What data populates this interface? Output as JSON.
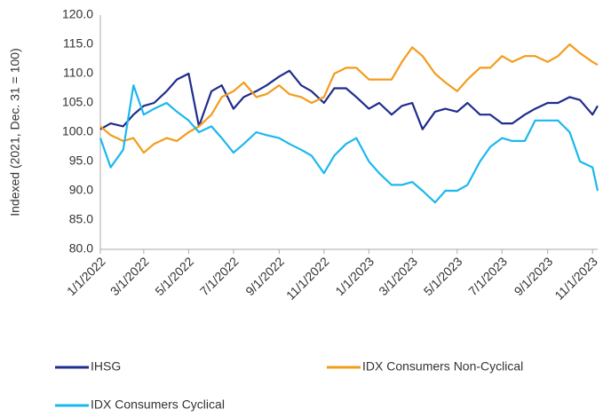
{
  "chart_data": {
    "type": "line",
    "y_label": "Indexed (2021, Dec. 31 = 100)",
    "x": [
      "2022-01-01",
      "2022-01-15",
      "2022-02-01",
      "2022-02-15",
      "2022-03-01",
      "2022-03-15",
      "2022-04-01",
      "2022-04-15",
      "2022-05-01",
      "2022-05-15",
      "2022-06-01",
      "2022-06-15",
      "2022-07-01",
      "2022-07-15",
      "2022-08-01",
      "2022-08-15",
      "2022-09-01",
      "2022-09-15",
      "2022-10-01",
      "2022-10-15",
      "2022-11-01",
      "2022-11-15",
      "2022-12-01",
      "2022-12-15",
      "2023-01-01",
      "2023-01-15",
      "2023-02-01",
      "2023-02-15",
      "2023-03-01",
      "2023-03-15",
      "2023-04-01",
      "2023-04-15",
      "2023-05-01",
      "2023-05-15",
      "2023-06-01",
      "2023-06-15",
      "2023-07-01",
      "2023-07-15",
      "2023-08-01",
      "2023-08-15",
      "2023-09-01",
      "2023-09-15",
      "2023-10-01",
      "2023-10-15",
      "2023-11-01",
      "2023-11-08"
    ],
    "series": [
      {
        "name": "IHSG",
        "color": "#1f2d8c",
        "values": [
          100.5,
          101.5,
          101,
          103,
          104.5,
          105,
          107,
          109,
          110,
          101,
          107,
          108,
          104,
          106,
          107,
          108,
          109.5,
          110.5,
          108,
          107,
          105,
          107.5,
          107.5,
          106,
          104,
          105,
          103,
          104.5,
          105,
          100.5,
          103.5,
          104,
          103.5,
          105,
          103,
          103,
          101.5,
          101.5,
          103,
          104,
          105,
          105,
          106,
          105.5,
          103,
          104.5
        ]
      },
      {
        "name": "IDX Consumers Non-Cyclical",
        "color": "#f39c1a",
        "values": [
          101,
          99.5,
          98.5,
          99,
          96.5,
          98,
          99,
          98.5,
          100,
          101,
          103,
          106,
          107,
          108.5,
          106,
          106.5,
          108,
          106.5,
          106,
          105,
          106,
          110,
          111,
          111,
          109,
          109,
          109,
          112,
          114.5,
          113,
          110,
          108.5,
          107,
          109,
          111,
          111,
          113,
          112,
          113,
          113,
          112,
          113,
          115,
          113.5,
          112,
          111.5
        ]
      },
      {
        "name": "IDX Consumers Cyclical",
        "color": "#1bb8ee",
        "values": [
          99,
          94,
          97,
          108,
          103,
          104,
          105,
          103.5,
          102,
          100,
          101,
          99,
          96.5,
          98,
          100,
          99.5,
          99,
          98,
          97,
          96,
          93,
          96,
          98,
          99,
          95,
          93,
          91,
          91,
          91.5,
          90,
          88,
          90,
          90,
          91,
          95,
          97.5,
          99,
          98.5,
          98.5,
          102,
          102,
          102,
          100,
          95,
          94,
          90
        ]
      }
    ],
    "xlim": [
      "2022-01-01",
      "2023-11-08"
    ],
    "xticks": [
      {
        "value": "2022-01-01",
        "label": "1/1/2022"
      },
      {
        "value": "2022-03-01",
        "label": "3/1/2022"
      },
      {
        "value": "2022-05-01",
        "label": "5/1/2022"
      },
      {
        "value": "2022-07-01",
        "label": "7/1/2022"
      },
      {
        "value": "2022-09-01",
        "label": "9/1/2022"
      },
      {
        "value": "2022-11-01",
        "label": "11/1/2022"
      },
      {
        "value": "2023-01-01",
        "label": "1/1/2023"
      },
      {
        "value": "2023-03-01",
        "label": "3/1/2023"
      },
      {
        "value": "2023-05-01",
        "label": "5/1/2023"
      },
      {
        "value": "2023-07-01",
        "label": "7/1/2023"
      },
      {
        "value": "2023-09-01",
        "label": "9/1/2023"
      },
      {
        "value": "2023-11-01",
        "label": "11/1/2023"
      }
    ],
    "ylim": [
      80,
      120
    ],
    "yticks": [
      {
        "value": 80,
        "label": "80.0"
      },
      {
        "value": 85,
        "label": "85.0"
      },
      {
        "value": 90,
        "label": "90.0"
      },
      {
        "value": 95,
        "label": "95.0"
      },
      {
        "value": 100,
        "label": "100.0"
      },
      {
        "value": 105,
        "label": "105.0"
      },
      {
        "value": 110,
        "label": "110.0"
      },
      {
        "value": 115,
        "label": "115.0"
      },
      {
        "value": 120,
        "label": "120.0"
      }
    ],
    "grid": false
  }
}
